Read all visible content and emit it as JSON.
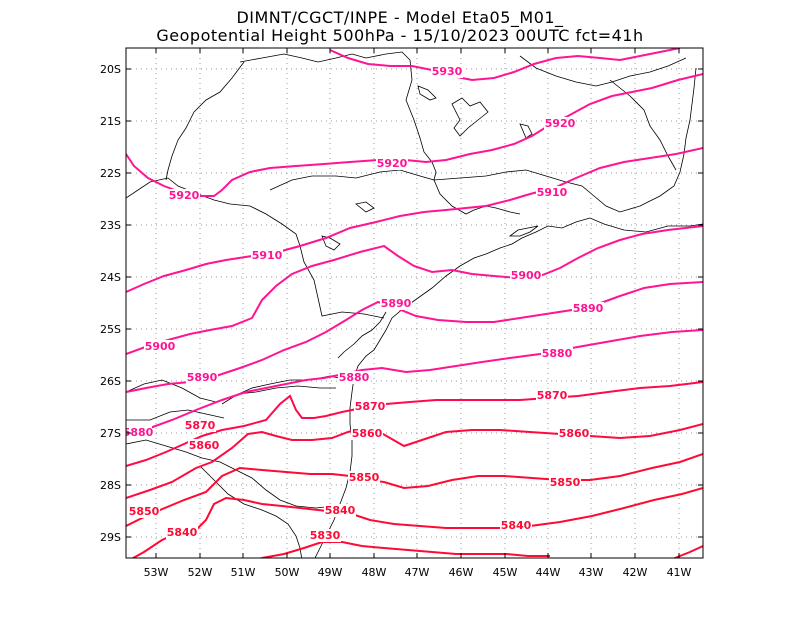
{
  "title": {
    "line1": "DIMNT/CGCT/INPE  -   Model Eta05_M01_",
    "line2": "Geopotential Height 500hPa  -   15/10/2023 00UTC fct=41h"
  },
  "axes": {
    "lat_labels": [
      "20S",
      "21S",
      "22S",
      "23S",
      "24S",
      "25S",
      "26S",
      "27S",
      "28S",
      "29S"
    ],
    "lon_labels": [
      "53W",
      "52W",
      "51W",
      "50W",
      "49W",
      "48W",
      "47W",
      "46W",
      "45W",
      "44W",
      "43W",
      "42W",
      "41W"
    ]
  },
  "colors": {
    "contour_high": "#ff1493",
    "contour_low": "#ff0a32",
    "border": "#000000",
    "grid": "#9a9a9a"
  },
  "contours": [
    {
      "value": 5930,
      "label": "5930"
    },
    {
      "value": 5920,
      "label": "5920"
    },
    {
      "value": 5910,
      "label": "5910"
    },
    {
      "value": 5900,
      "label": "5900"
    },
    {
      "value": 5890,
      "label": "5890"
    },
    {
      "value": 5880,
      "label": "5880"
    },
    {
      "value": 5870,
      "label": "5870"
    },
    {
      "value": 5860,
      "label": "5860"
    },
    {
      "value": 5850,
      "label": "5850"
    },
    {
      "value": 5840,
      "label": "5840"
    },
    {
      "value": 5830,
      "label": "5830"
    }
  ]
}
